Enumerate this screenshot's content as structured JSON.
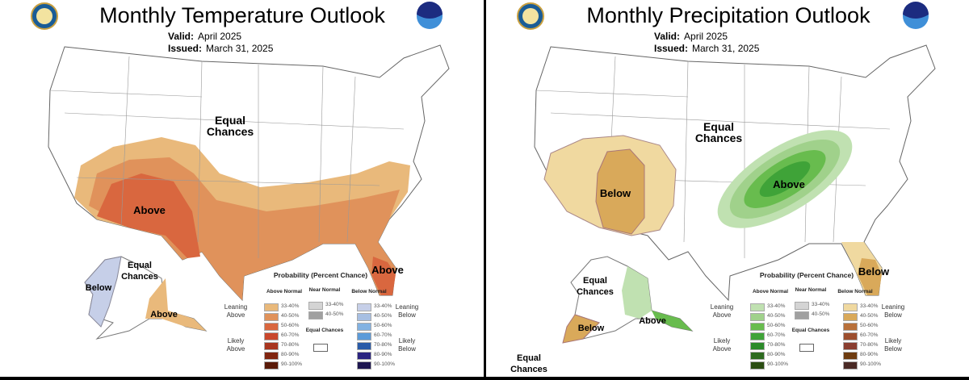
{
  "panels": [
    {
      "title": "Monthly Temperature Outlook",
      "valid_label": "Valid:",
      "valid": "April 2025",
      "issued_label": "Issued:",
      "issued": "March 31, 2025",
      "map_labels": {
        "equal_chances_conus": "Equal Chances",
        "above_sw": "Above",
        "above_fl": "Above",
        "equal_chances_ak": "Equal Chances",
        "below_ak": "Below",
        "above_ak": "Above"
      },
      "legend": {
        "title": "Probability (Percent Chance)",
        "col_above": "Above Normal",
        "col_near": "Near Normal",
        "col_below": "Below Normal",
        "equal": "Equal Chances",
        "leaning_left": "Leaning Above",
        "likely_left": "Likely Above",
        "leaning_right": "Leaning Below",
        "likely_right": "Likely Below",
        "ranges": [
          "33-40%",
          "40-50%",
          "50-60%",
          "60-70%",
          "70-80%",
          "80-90%",
          "90-100%"
        ],
        "above_colors": [
          "#e9b97b",
          "#e0925b",
          "#d9673f",
          "#c9472c",
          "#a8351f",
          "#80250f",
          "#5a1a08"
        ],
        "near_colors": [
          "#d4d4d4",
          "#a0a0a0"
        ],
        "below_colors": [
          "#c6cfe8",
          "#a7bfe2",
          "#82b2e2",
          "#5c9bd9",
          "#2a5ba8",
          "#2b2480",
          "#1d1650"
        ]
      }
    },
    {
      "title": "Monthly Precipitation Outlook",
      "valid_label": "Valid:",
      "valid": "April 2025",
      "issued_label": "Issued:",
      "issued": "March 31, 2025",
      "map_labels": {
        "equal_chances_conus": "Equal Chances",
        "below_sw": "Below",
        "above_ov": "Above",
        "below_fl": "Below",
        "equal_chances_ak": "Equal Chances",
        "below_ak": "Below",
        "above_ak": "Above",
        "equal_chances_ak2": "Equal Chances"
      },
      "legend": {
        "title": "Probability (Percent Chance)",
        "col_above": "Above Normal",
        "col_near": "Near Normal",
        "col_below": "Below Normal",
        "equal": "Equal Chances",
        "leaning_left": "Leaning Above",
        "likely_left": "Likely Above",
        "leaning_right": "Leaning Below",
        "likely_right": "Likely Below",
        "ranges": [
          "33-40%",
          "40-50%",
          "50-60%",
          "60-70%",
          "70-80%",
          "80-90%",
          "90-100%"
        ],
        "above_colors": [
          "#c0e1b1",
          "#a0d18b",
          "#68bc4e",
          "#3fa338",
          "#2c8a2a",
          "#2d6a1f",
          "#2a4d12"
        ],
        "near_colors": [
          "#d4d4d4",
          "#a0a0a0"
        ],
        "below_colors": [
          "#f0d9a0",
          "#d9a95a",
          "#b8703a",
          "#9c4e2e",
          "#8a3e30",
          "#6e3c10",
          "#4a2a25"
        ]
      }
    }
  ]
}
